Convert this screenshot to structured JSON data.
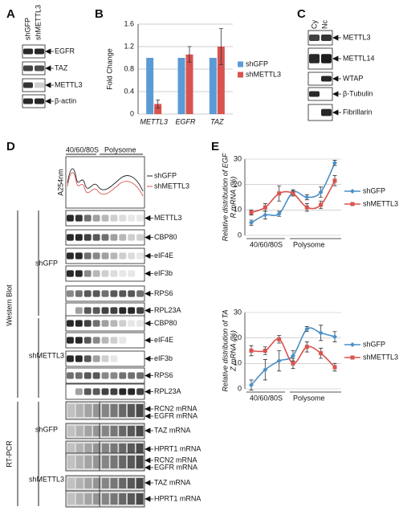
{
  "panel_a": {
    "letter": "A",
    "lanes": [
      "shGFP",
      "shMETTL3"
    ],
    "bands": [
      "EGFR",
      "TAZ",
      "METTL3",
      "β-actin"
    ]
  },
  "panel_c": {
    "letter": "C",
    "lanes": [
      "Cy",
      "Nc"
    ],
    "bands": [
      "METTL3",
      "METTL14",
      "WTAP",
      "β-Tubulin",
      "Fibrillarin"
    ]
  },
  "panel_d": {
    "letter": "D",
    "fractions": [
      "40/60/80S",
      "Polysome"
    ],
    "profile_axis": "A254nm",
    "profile_legend": [
      "shGFP",
      "shMETTL3"
    ],
    "groups": [
      "Western Blot",
      "RT-PCR"
    ],
    "wb_conditions": [
      "shGFP",
      "shMETTL3"
    ],
    "wb_bands": [
      [
        "METTL3",
        "CBP80",
        "eIF4E",
        "eIF3b",
        "RPS6",
        "RPL23A"
      ],
      [
        "CBP80",
        "eIF4E",
        "eIF3b",
        "RPS6",
        "RPL23A"
      ]
    ],
    "rt_conditions": [
      "shGFP",
      "shMETTL3"
    ],
    "rt_bands": [
      [
        "RCN2 mRNA",
        "EGFR mRNA",
        "TAZ mRNA",
        "HPRT1 mRNA"
      ],
      [
        "RCN2 mRNA",
        "EGFR mRNA",
        "TAZ mRNA",
        "HPRT1 mRNA"
      ]
    ]
  },
  "chart_data": [
    {
      "type": "bar",
      "panel": "B",
      "ylabel": "Fold Change",
      "categories": [
        "METTL3",
        "EGFR",
        "TAZ"
      ],
      "series": [
        {
          "name": "shGFP",
          "color": "#5b9bd5",
          "values": [
            1,
            1,
            1
          ]
        },
        {
          "name": "shMETTL3",
          "color": "#d9534f",
          "values": [
            0.18,
            1.06,
            1.2
          ],
          "errors": [
            0.07,
            0.14,
            0.32
          ]
        }
      ],
      "ylim": [
        0,
        1.6
      ],
      "yticks": [
        0,
        0.4,
        0.8,
        1.2,
        1.6
      ],
      "grid": true
    },
    {
      "type": "line",
      "panel": "E",
      "ylabel": [
        "Relative distribution of EGF",
        "R mRNA (%)"
      ],
      "categories": [
        null,
        null,
        null,
        null,
        null,
        null,
        null
      ],
      "xgroups": [
        "40/60/80S",
        "Polysome"
      ],
      "series": [
        {
          "name": "shGFP",
          "color": "#4a90c8",
          "values": [
            5,
            8,
            8.5,
            17,
            15,
            17,
            28.5
          ],
          "errors": [
            1,
            1.5,
            1,
            1,
            1,
            2,
            1
          ]
        },
        {
          "name": "shMETTL3",
          "color": "#d9534f",
          "values": [
            9,
            11,
            16.5,
            16.5,
            11,
            12,
            21.5
          ],
          "errors": [
            1,
            1.5,
            3,
            1,
            1.5,
            1.5,
            2
          ]
        }
      ],
      "ylim": [
        0,
        30
      ],
      "yticks": [
        0,
        10,
        20,
        30
      ],
      "grid": true
    },
    {
      "type": "line",
      "ylabel": [
        "Relative distribution of TA",
        "Z mRNA (%)"
      ],
      "categories": [
        null,
        null,
        null,
        null,
        null,
        null,
        null
      ],
      "xgroups": [
        "40/60/80S",
        "Polysome"
      ],
      "series": [
        {
          "name": "shGFP",
          "color": "#4a90c8",
          "values": [
            1.5,
            7.5,
            11,
            13,
            23.5,
            22,
            20.5
          ],
          "errors": [
            2,
            4,
            4,
            2,
            1,
            3,
            2
          ]
        },
        {
          "name": "shMETTL3",
          "color": "#d9534f",
          "values": [
            15,
            15,
            19.5,
            10,
            16.5,
            14,
            8.5
          ],
          "errors": [
            2,
            1.5,
            1.5,
            2,
            2,
            2,
            1.5
          ]
        }
      ],
      "ylim": [
        0,
        30
      ],
      "yticks": [
        0,
        10,
        20,
        30
      ],
      "grid": true
    }
  ]
}
